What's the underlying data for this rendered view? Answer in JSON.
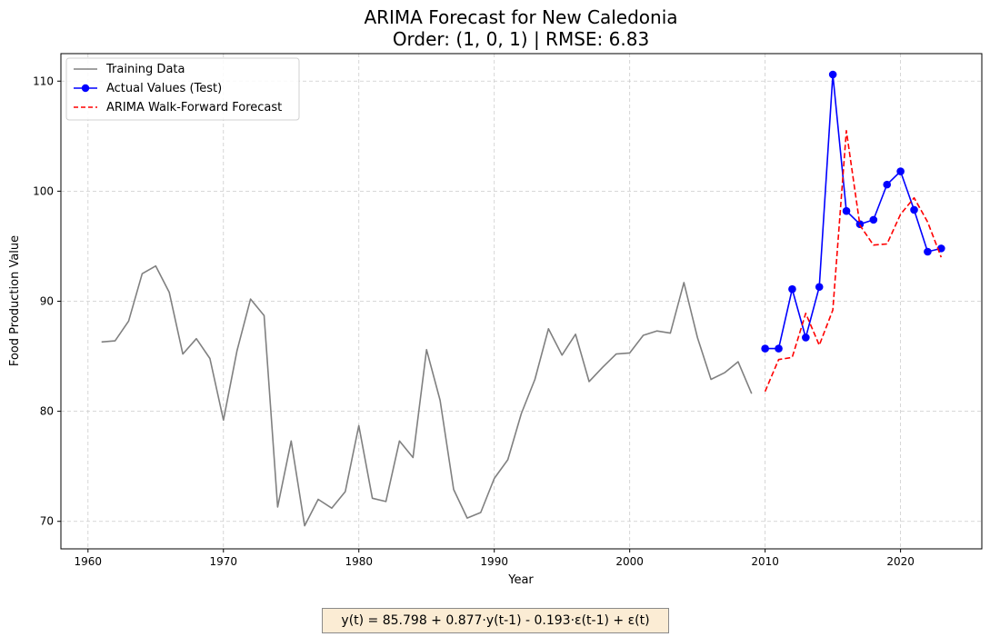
{
  "chart_data": {
    "type": "line",
    "title": "ARIMA Forecast for New Caledonia",
    "subtitle": "Order: (1, 0, 1) | RMSE: 6.83",
    "xlabel": "Year",
    "ylabel": "Food Production Value",
    "xlim": [
      1958,
      2026
    ],
    "ylim": [
      67.5,
      112.5
    ],
    "xticks": [
      1960,
      1970,
      1980,
      1990,
      2000,
      2010,
      2020
    ],
    "yticks": [
      70,
      80,
      90,
      100,
      110
    ],
    "grid": true,
    "legend_position": "top-left",
    "series": [
      {
        "name": "Training Data",
        "color": "#808080",
        "style": "solid",
        "marker": false,
        "x": [
          1961,
          1962,
          1963,
          1964,
          1965,
          1966,
          1967,
          1968,
          1969,
          1970,
          1971,
          1972,
          1973,
          1974,
          1975,
          1976,
          1977,
          1978,
          1979,
          1980,
          1981,
          1982,
          1983,
          1984,
          1985,
          1986,
          1987,
          1988,
          1989,
          1990,
          1991,
          1992,
          1993,
          1994,
          1995,
          1996,
          1997,
          1998,
          1999,
          2000,
          2001,
          2002,
          2003,
          2004,
          2005,
          2006,
          2007,
          2008,
          2009
        ],
        "y": [
          86.3,
          86.4,
          88.2,
          92.5,
          93.2,
          90.8,
          85.2,
          86.6,
          84.8,
          79.2,
          85.5,
          90.2,
          88.7,
          71.3,
          77.3,
          69.6,
          72.0,
          71.2,
          72.7,
          78.7,
          72.1,
          71.8,
          77.3,
          75.8,
          85.6,
          81.0,
          72.9,
          70.3,
          70.8,
          73.9,
          75.6,
          79.8,
          82.9,
          87.5,
          85.1,
          87.0,
          82.7,
          84.0,
          85.2,
          85.3,
          86.9,
          87.3,
          87.1,
          91.7,
          86.7,
          82.9,
          83.5,
          84.5,
          81.6
        ]
      },
      {
        "name": "Actual Values (Test)",
        "color": "#0000ff",
        "style": "solid",
        "marker": true,
        "x": [
          2010,
          2011,
          2012,
          2013,
          2014,
          2015,
          2016,
          2017,
          2018,
          2019,
          2020,
          2021,
          2022,
          2023
        ],
        "y": [
          85.7,
          85.7,
          91.1,
          86.7,
          91.3,
          110.6,
          98.2,
          97.0,
          97.4,
          100.6,
          101.8,
          98.3,
          94.5,
          94.8
        ]
      },
      {
        "name": "ARIMA Walk-Forward Forecast",
        "color": "#ff0000",
        "style": "dashed",
        "marker": false,
        "x": [
          2010,
          2011,
          2012,
          2013,
          2014,
          2015,
          2016,
          2017,
          2018,
          2019,
          2020,
          2021,
          2022,
          2023
        ],
        "y": [
          81.8,
          84.7,
          84.9,
          88.9,
          86.0,
          89.2,
          105.5,
          96.9,
          95.1,
          95.2,
          97.9,
          99.4,
          97.2,
          94.0
        ]
      }
    ]
  },
  "annotation": {
    "formula": "y(t) = 85.798 + 0.877·y(t-1) - 0.193·ε(t-1) + ε(t)"
  }
}
